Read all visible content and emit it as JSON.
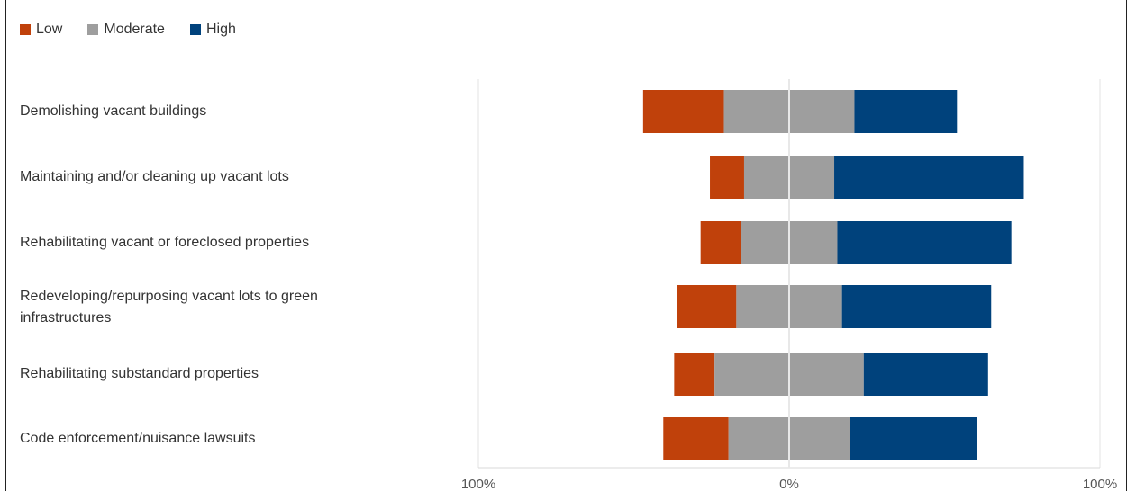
{
  "chart_data": {
    "type": "bar",
    "orientation": "horizontal",
    "stacking": "diverging",
    "title": "",
    "legend": [
      {
        "name": "Low",
        "color": "#C0410B"
      },
      {
        "name": "Moderate",
        "color": "#9E9E9E"
      },
      {
        "name": "High",
        "color": "#00427C"
      }
    ],
    "legend_position": "top-left",
    "categories": [
      "Demolishing vacant buildings",
      "Maintaining and/or cleaning up vacant lots",
      "Rehabilitating vacant or foreclosed properties",
      "Redeveloping/repurposing vacant lots to green infrastructures",
      "Rehabilitating substandard properties",
      "Code enforcement/nuisance lawsuits"
    ],
    "series": [
      {
        "name": "Low",
        "values": [
          26,
          11,
          13,
          19,
          13,
          21
        ]
      },
      {
        "name": "Moderate",
        "values": [
          42,
          29,
          31,
          34,
          48,
          39
        ]
      },
      {
        "name": "High",
        "values": [
          33,
          61,
          56,
          48,
          40,
          41
        ]
      }
    ],
    "xlim": [
      -100,
      100
    ],
    "x_tick_labels": [
      "100%",
      "0%",
      "100%"
    ],
    "grid": "vertical"
  }
}
